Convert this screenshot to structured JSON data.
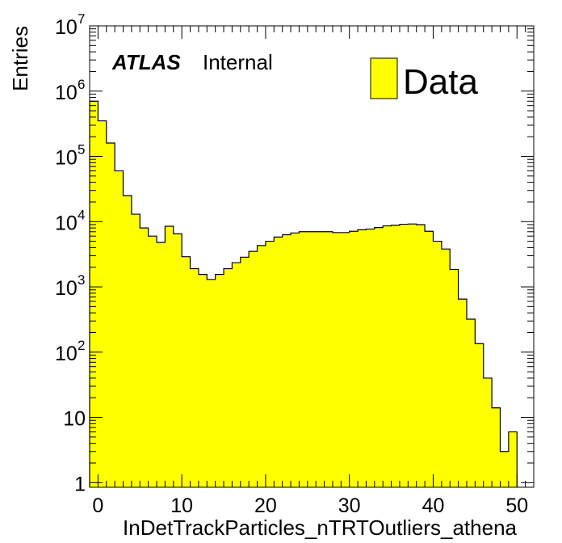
{
  "chart_data": {
    "type": "bar",
    "histogram": true,
    "xlabel": "InDetTrackParticles_nTRTOutliers_athena",
    "ylabel": "Entries",
    "xlim": [
      -1,
      52
    ],
    "ylim": [
      0.85,
      10000000
    ],
    "log_y": true,
    "grid": false,
    "legend_position": "top-right",
    "x_ticks": [
      "0",
      "10",
      "20",
      "30",
      "40",
      "50"
    ],
    "y_ticks": [
      {
        "base": "1",
        "exp": ""
      },
      {
        "base": "10",
        "exp": ""
      },
      {
        "base": "10",
        "exp": "2"
      },
      {
        "base": "10",
        "exp": "3"
      },
      {
        "base": "10",
        "exp": "4"
      },
      {
        "base": "10",
        "exp": "5"
      },
      {
        "base": "10",
        "exp": "6"
      },
      {
        "base": "10",
        "exp": "7"
      }
    ],
    "bin_edges_start": -1,
    "bin_width": 1,
    "series": [
      {
        "name": "Data",
        "color": "#ffff00",
        "edge_color": "#000000",
        "values": [
          700000,
          350000,
          160000,
          60000,
          25000,
          13000,
          8000,
          6000,
          4800,
          8500,
          6500,
          2900,
          1900,
          1550,
          1300,
          1550,
          1900,
          2350,
          2850,
          3500,
          4300,
          5000,
          5800,
          6300,
          6700,
          7000,
          7000,
          7000,
          7000,
          6800,
          6800,
          7100,
          7500,
          7700,
          8100,
          8600,
          8800,
          9100,
          9200,
          9000,
          7100,
          5000,
          3800,
          1850,
          650,
          320,
          135,
          40,
          14,
          3,
          6
        ]
      }
    ]
  },
  "annotation": {
    "atlas": "ATLAS",
    "internal": "Internal"
  },
  "legend": {
    "label": "Data"
  }
}
